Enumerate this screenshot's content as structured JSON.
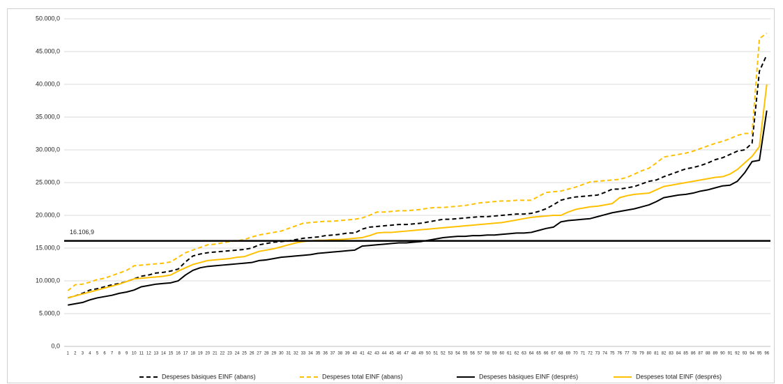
{
  "chart_data": {
    "type": "line",
    "categories": [
      1,
      2,
      3,
      4,
      5,
      6,
      7,
      8,
      9,
      10,
      11,
      12,
      13,
      14,
      15,
      16,
      17,
      18,
      19,
      20,
      21,
      22,
      23,
      24,
      25,
      26,
      27,
      28,
      29,
      30,
      31,
      32,
      33,
      34,
      35,
      36,
      37,
      38,
      39,
      40,
      41,
      42,
      43,
      44,
      45,
      46,
      47,
      48,
      49,
      50,
      51,
      52,
      53,
      54,
      55,
      56,
      57,
      58,
      59,
      60,
      61,
      62,
      63,
      64,
      65,
      66,
      67,
      68,
      69,
      70,
      71,
      72,
      73,
      74,
      75,
      76,
      77,
      78,
      79,
      80,
      81,
      82,
      83,
      84,
      85,
      86,
      87,
      88,
      89,
      90,
      91,
      92,
      93,
      94,
      95,
      96
    ],
    "series": [
      {
        "name": "Despeses bàsiques EINF (abans)",
        "color": "#000000",
        "dashed": true,
        "values": [
          7400,
          7700,
          8100,
          8600,
          8800,
          9100,
          9400,
          9600,
          9900,
          10300,
          10700,
          10900,
          11200,
          11300,
          11500,
          11800,
          12900,
          13800,
          14100,
          14300,
          14400,
          14500,
          14600,
          14700,
          14800,
          15000,
          15500,
          15700,
          15900,
          16000,
          16100,
          16300,
          16500,
          16600,
          16700,
          16900,
          17000,
          17100,
          17300,
          17300,
          17900,
          18200,
          18300,
          18400,
          18500,
          18600,
          18600,
          18700,
          18800,
          19000,
          19200,
          19400,
          19400,
          19500,
          19600,
          19700,
          19800,
          19800,
          19900,
          20000,
          20100,
          20200,
          20200,
          20300,
          20600,
          21000,
          21600,
          22300,
          22600,
          22800,
          22900,
          23000,
          23100,
          23500,
          24000,
          24000,
          24200,
          24400,
          24800,
          25200,
          25400,
          25900,
          26300,
          26700,
          27100,
          27300,
          27600,
          28000,
          28500,
          28800,
          29300,
          29800,
          30000,
          31000,
          42000,
          44500
        ]
      },
      {
        "name": "Despeses total EINF (abans)",
        "color": "#ffc000",
        "dashed": true,
        "values": [
          8500,
          9400,
          9500,
          9800,
          10200,
          10400,
          10800,
          11200,
          11600,
          12300,
          12400,
          12500,
          12600,
          12700,
          12900,
          13600,
          14300,
          14700,
          15100,
          15500,
          15600,
          15800,
          16000,
          16100,
          16300,
          16700,
          17000,
          17200,
          17400,
          17600,
          18000,
          18400,
          18800,
          18900,
          19000,
          19100,
          19100,
          19200,
          19300,
          19400,
          19600,
          20000,
          20500,
          20500,
          20600,
          20700,
          20700,
          20800,
          20900,
          21100,
          21200,
          21200,
          21300,
          21400,
          21500,
          21700,
          21900,
          22000,
          22100,
          22200,
          22200,
          22300,
          22300,
          22300,
          22900,
          23500,
          23600,
          23700,
          24000,
          24300,
          24700,
          25100,
          25200,
          25300,
          25400,
          25500,
          25800,
          26300,
          26800,
          27200,
          28000,
          28900,
          29100,
          29300,
          29500,
          29800,
          30200,
          30600,
          31000,
          31300,
          31700,
          32200,
          32500,
          32500,
          47000,
          47800
        ]
      },
      {
        "name": "Despeses bàsiques EINF (després)",
        "color": "#000000",
        "dashed": false,
        "values": [
          6300,
          6500,
          6700,
          7100,
          7400,
          7600,
          7800,
          8100,
          8300,
          8600,
          9100,
          9300,
          9500,
          9600,
          9700,
          10000,
          10900,
          11600,
          12000,
          12200,
          12300,
          12400,
          12500,
          12600,
          12700,
          12800,
          13100,
          13200,
          13400,
          13600,
          13700,
          13800,
          13900,
          14000,
          14200,
          14300,
          14400,
          14500,
          14600,
          14700,
          15300,
          15400,
          15500,
          15600,
          15700,
          15800,
          15800,
          15900,
          16000,
          16200,
          16400,
          16600,
          16700,
          16800,
          16800,
          16900,
          16900,
          17000,
          17000,
          17100,
          17200,
          17300,
          17300,
          17400,
          17700,
          18000,
          18200,
          19000,
          19200,
          19300,
          19400,
          19500,
          19800,
          20100,
          20400,
          20600,
          20800,
          21000,
          21300,
          21600,
          22100,
          22700,
          22900,
          23100,
          23200,
          23400,
          23700,
          23900,
          24200,
          24500,
          24600,
          25200,
          26500,
          28200,
          28400,
          36000
        ]
      },
      {
        "name": "Despeses total EINF (després)",
        "color": "#ffc000",
        "dashed": false,
        "values": [
          7400,
          7700,
          8000,
          8300,
          8600,
          8900,
          9200,
          9500,
          9900,
          10300,
          10400,
          10500,
          10600,
          10700,
          10900,
          11500,
          12000,
          12500,
          12800,
          13100,
          13200,
          13300,
          13400,
          13600,
          13700,
          14100,
          14500,
          14700,
          14900,
          15200,
          15500,
          15800,
          16000,
          16100,
          16200,
          16200,
          16300,
          16300,
          16400,
          16500,
          16600,
          16900,
          17300,
          17400,
          17400,
          17500,
          17600,
          17700,
          17800,
          17900,
          18000,
          18100,
          18200,
          18300,
          18400,
          18500,
          18600,
          18700,
          18800,
          18900,
          19100,
          19300,
          19500,
          19700,
          19800,
          19900,
          20000,
          20000,
          20500,
          20900,
          21100,
          21300,
          21400,
          21600,
          21800,
          22700,
          23000,
          23200,
          23300,
          23400,
          23900,
          24400,
          24600,
          24800,
          25000,
          25200,
          25400,
          25600,
          25800,
          25900,
          26300,
          27000,
          28000,
          29000,
          30500,
          40000
        ]
      }
    ],
    "reference_line": {
      "value": 16106.9,
      "label": "16.106,9"
    },
    "ylim": [
      0,
      50000
    ],
    "yticks": [
      {
        "value": 0,
        "label": "0,0"
      },
      {
        "value": 5000,
        "label": "5.000,0"
      },
      {
        "value": 10000,
        "label": "10.000,0"
      },
      {
        "value": 15000,
        "label": "15.000,0"
      },
      {
        "value": 20000,
        "label": "20.000,0"
      },
      {
        "value": 25000,
        "label": "25.000,0"
      },
      {
        "value": 30000,
        "label": "30.000,0"
      },
      {
        "value": 35000,
        "label": "35.000,0"
      },
      {
        "value": 40000,
        "label": "40.000,0"
      },
      {
        "value": 45000,
        "label": "45.000,0"
      },
      {
        "value": 50000,
        "label": "50.000,0"
      }
    ],
    "grid": true,
    "legend": "bottom"
  }
}
